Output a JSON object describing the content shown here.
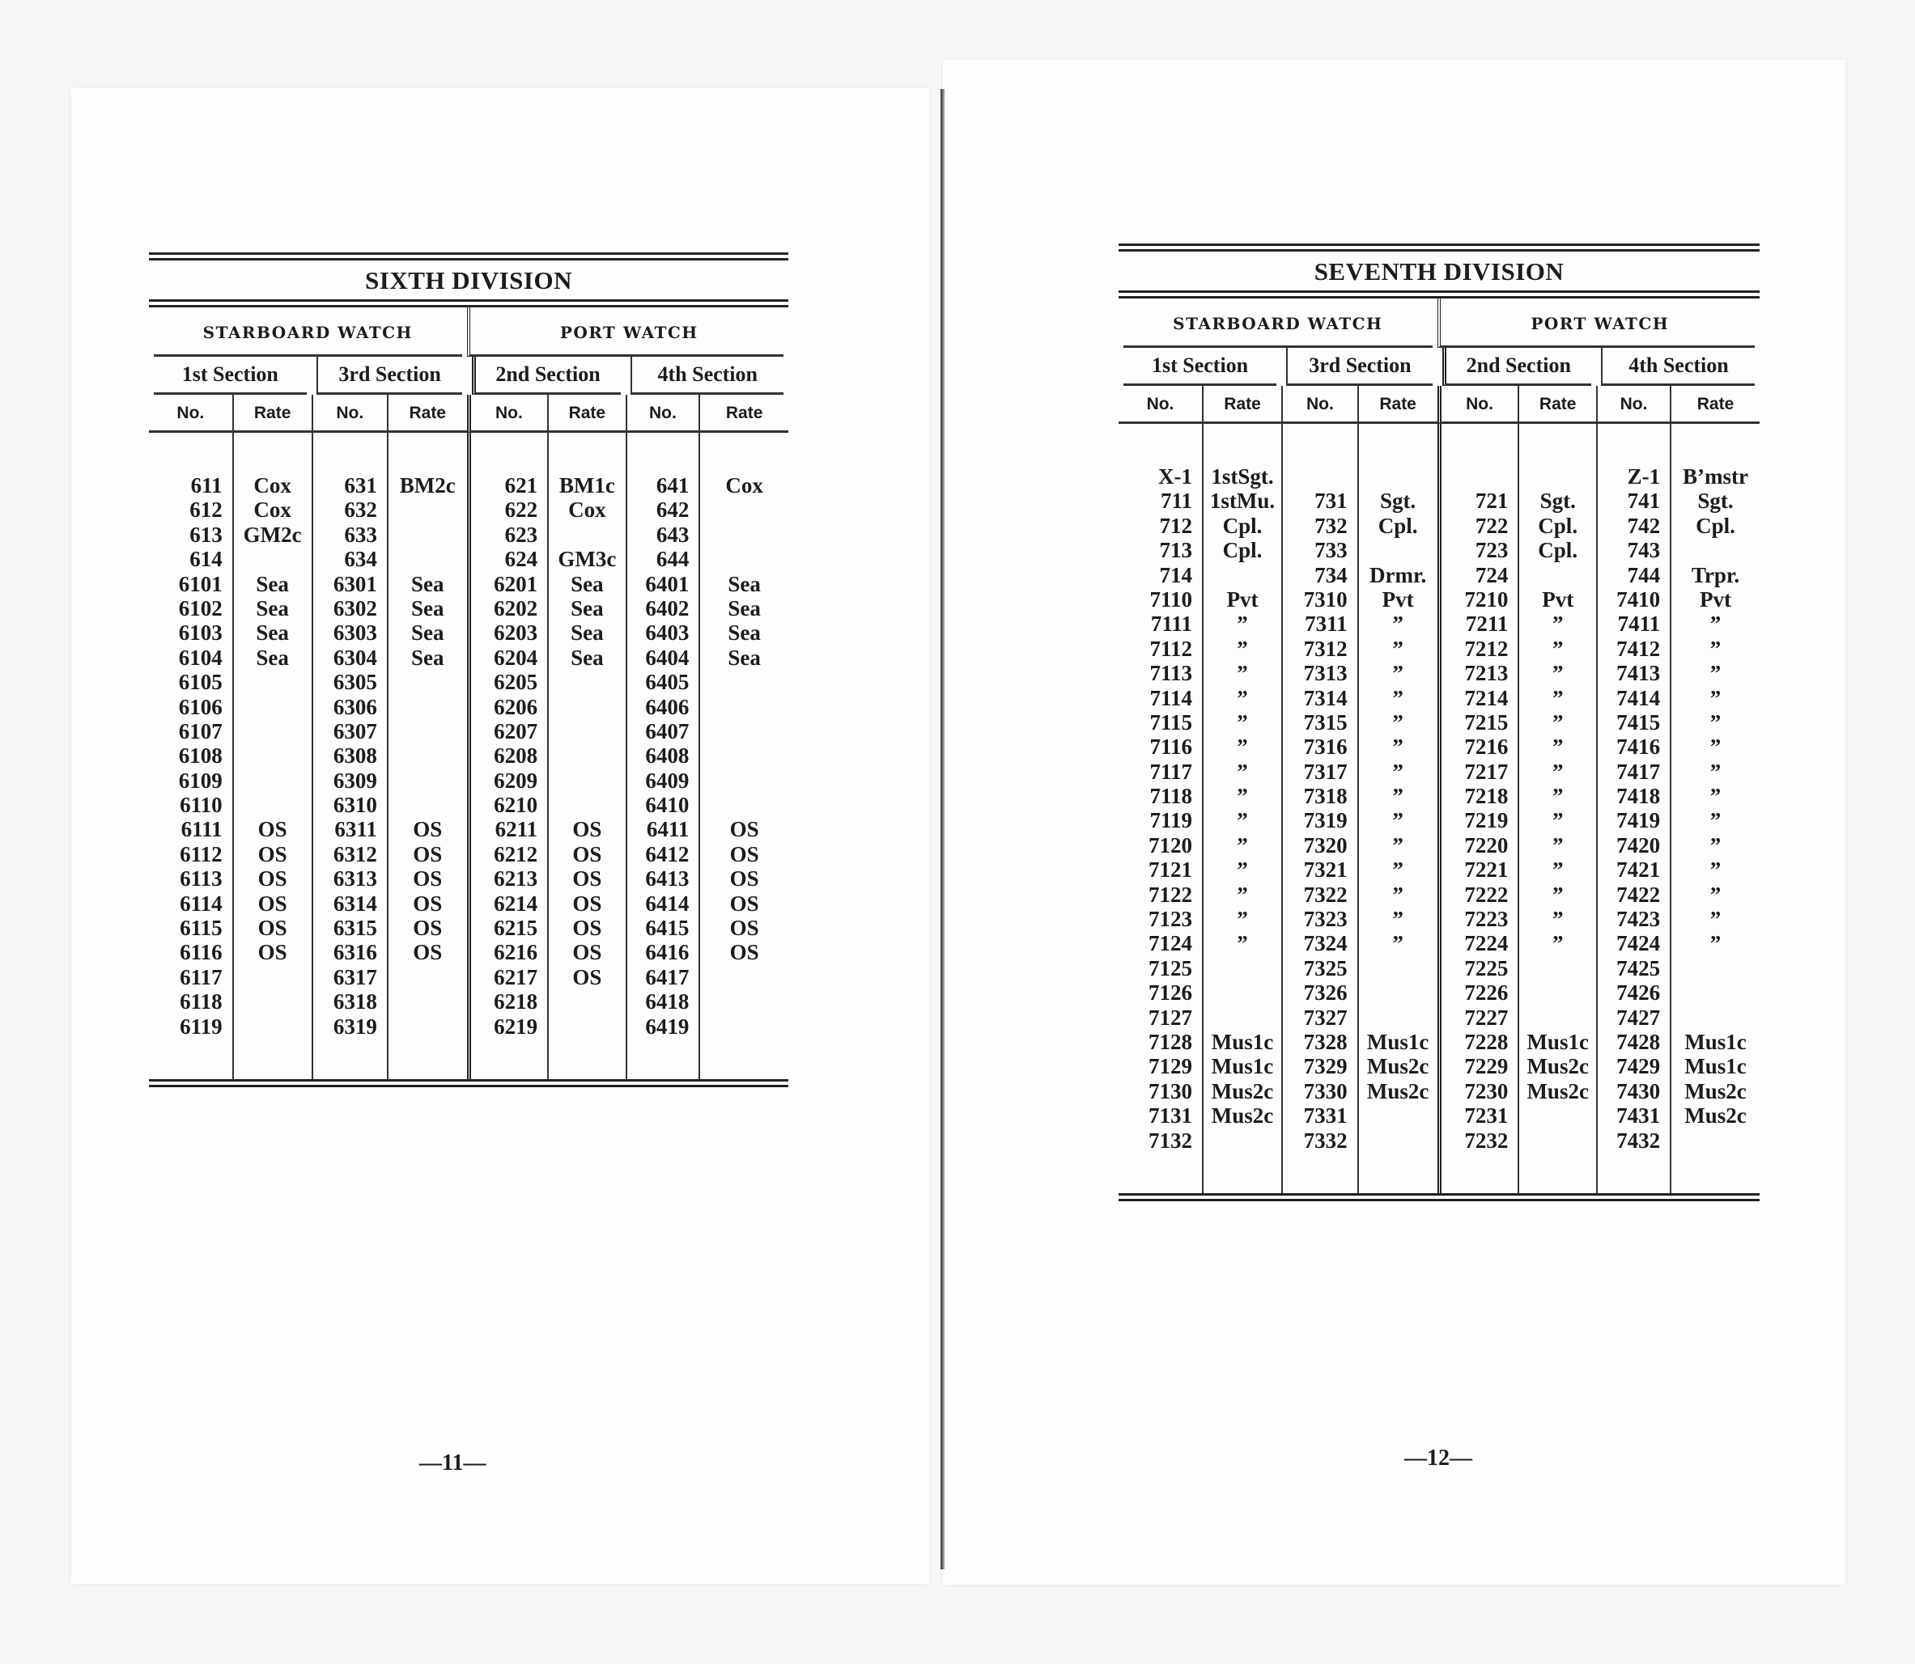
{
  "pages": [
    {
      "page_number": "—11—",
      "title": "SIXTH DIVISION",
      "watches": [
        {
          "label": "STARBOARD WATCH",
          "sections": [
            {
              "label": "1st Section",
              "no_label": "No.",
              "rate_label": "Rate",
              "rows": [
                [
                  "611",
                  "Cox"
                ],
                [
                  "612",
                  "Cox"
                ],
                [
                  "613",
                  "GM2c"
                ],
                [
                  "614",
                  ""
                ],
                [
                  "6101",
                  "Sea"
                ],
                [
                  "6102",
                  "Sea"
                ],
                [
                  "6103",
                  "Sea"
                ],
                [
                  "6104",
                  "Sea"
                ],
                [
                  "6105",
                  ""
                ],
                [
                  "6106",
                  ""
                ],
                [
                  "6107",
                  ""
                ],
                [
                  "6108",
                  ""
                ],
                [
                  "6109",
                  ""
                ],
                [
                  "6110",
                  ""
                ],
                [
                  "6111",
                  "OS"
                ],
                [
                  "6112",
                  "OS"
                ],
                [
                  "6113",
                  "OS"
                ],
                [
                  "6114",
                  "OS"
                ],
                [
                  "6115",
                  "OS"
                ],
                [
                  "6116",
                  "OS"
                ],
                [
                  "6117",
                  ""
                ],
                [
                  "6118",
                  ""
                ],
                [
                  "6119",
                  ""
                ]
              ]
            },
            {
              "label": "3rd Section",
              "no_label": "No.",
              "rate_label": "Rate",
              "rows": [
                [
                  "631",
                  "BM2c"
                ],
                [
                  "632",
                  ""
                ],
                [
                  "633",
                  ""
                ],
                [
                  "634",
                  ""
                ],
                [
                  "6301",
                  "Sea"
                ],
                [
                  "6302",
                  "Sea"
                ],
                [
                  "6303",
                  "Sea"
                ],
                [
                  "6304",
                  "Sea"
                ],
                [
                  "6305",
                  ""
                ],
                [
                  "6306",
                  ""
                ],
                [
                  "6307",
                  ""
                ],
                [
                  "6308",
                  ""
                ],
                [
                  "6309",
                  ""
                ],
                [
                  "6310",
                  ""
                ],
                [
                  "6311",
                  "OS"
                ],
                [
                  "6312",
                  "OS"
                ],
                [
                  "6313",
                  "OS"
                ],
                [
                  "6314",
                  "OS"
                ],
                [
                  "6315",
                  "OS"
                ],
                [
                  "6316",
                  "OS"
                ],
                [
                  "6317",
                  ""
                ],
                [
                  "6318",
                  ""
                ],
                [
                  "6319",
                  ""
                ]
              ]
            }
          ]
        },
        {
          "label": "PORT WATCH",
          "sections": [
            {
              "label": "2nd Section",
              "no_label": "No.",
              "rate_label": "Rate",
              "rows": [
                [
                  "621",
                  "BM1c"
                ],
                [
                  "622",
                  "Cox"
                ],
                [
                  "623",
                  ""
                ],
                [
                  "624",
                  "GM3c"
                ],
                [
                  "6201",
                  "Sea"
                ],
                [
                  "6202",
                  "Sea"
                ],
                [
                  "6203",
                  "Sea"
                ],
                [
                  "6204",
                  "Sea"
                ],
                [
                  "6205",
                  ""
                ],
                [
                  "6206",
                  ""
                ],
                [
                  "6207",
                  ""
                ],
                [
                  "6208",
                  ""
                ],
                [
                  "6209",
                  ""
                ],
                [
                  "6210",
                  ""
                ],
                [
                  "6211",
                  "OS"
                ],
                [
                  "6212",
                  "OS"
                ],
                [
                  "6213",
                  "OS"
                ],
                [
                  "6214",
                  "OS"
                ],
                [
                  "6215",
                  "OS"
                ],
                [
                  "6216",
                  "OS"
                ],
                [
                  "6217",
                  "OS"
                ],
                [
                  "6218",
                  ""
                ],
                [
                  "6219",
                  ""
                ]
              ]
            },
            {
              "label": "4th Section",
              "no_label": "No.",
              "rate_label": "Rate",
              "rows": [
                [
                  "641",
                  "Cox"
                ],
                [
                  "642",
                  ""
                ],
                [
                  "643",
                  ""
                ],
                [
                  "644",
                  ""
                ],
                [
                  "6401",
                  "Sea"
                ],
                [
                  "6402",
                  "Sea"
                ],
                [
                  "6403",
                  "Sea"
                ],
                [
                  "6404",
                  "Sea"
                ],
                [
                  "6405",
                  ""
                ],
                [
                  "6406",
                  ""
                ],
                [
                  "6407",
                  ""
                ],
                [
                  "6408",
                  ""
                ],
                [
                  "6409",
                  ""
                ],
                [
                  "6410",
                  ""
                ],
                [
                  "6411",
                  "OS"
                ],
                [
                  "6412",
                  "OS"
                ],
                [
                  "6413",
                  "OS"
                ],
                [
                  "6414",
                  "OS"
                ],
                [
                  "6415",
                  "OS"
                ],
                [
                  "6416",
                  "OS"
                ],
                [
                  "6417",
                  ""
                ],
                [
                  "6418",
                  ""
                ],
                [
                  "6419",
                  ""
                ]
              ]
            }
          ]
        }
      ]
    },
    {
      "page_number": "—12—",
      "title": "SEVENTH DIVISION",
      "watches": [
        {
          "label": "STARBOARD WATCH",
          "sections": [
            {
              "label": "1st Section",
              "no_label": "No.",
              "rate_label": "Rate",
              "rows": [
                [
                  "X-1",
                  "1stSgt."
                ],
                [
                  "711",
                  "1stMu."
                ],
                [
                  "712",
                  "Cpl."
                ],
                [
                  "713",
                  "Cpl."
                ],
                [
                  "714",
                  ""
                ],
                [
                  "7110",
                  "Pvt"
                ],
                [
                  "7111",
                  "”"
                ],
                [
                  "7112",
                  "”"
                ],
                [
                  "7113",
                  "”"
                ],
                [
                  "7114",
                  "”"
                ],
                [
                  "7115",
                  "”"
                ],
                [
                  "7116",
                  "”"
                ],
                [
                  "7117",
                  "”"
                ],
                [
                  "7118",
                  "”"
                ],
                [
                  "7119",
                  "”"
                ],
                [
                  "7120",
                  "”"
                ],
                [
                  "7121",
                  "”"
                ],
                [
                  "7122",
                  "”"
                ],
                [
                  "7123",
                  "”"
                ],
                [
                  "7124",
                  "”"
                ],
                [
                  "7125",
                  ""
                ],
                [
                  "7126",
                  ""
                ],
                [
                  "7127",
                  ""
                ],
                [
                  "7128",
                  "Mus1c"
                ],
                [
                  "7129",
                  "Mus1c"
                ],
                [
                  "7130",
                  "Mus2c"
                ],
                [
                  "7131",
                  "Mus2c"
                ],
                [
                  "7132",
                  ""
                ]
              ]
            },
            {
              "label": "3rd Section",
              "no_label": "No.",
              "rate_label": "Rate",
              "rows": [
                [
                  "",
                  ""
                ],
                [
                  "731",
                  "Sgt."
                ],
                [
                  "732",
                  "Cpl."
                ],
                [
                  "733",
                  ""
                ],
                [
                  "734",
                  "Drmr."
                ],
                [
                  "7310",
                  "Pvt"
                ],
                [
                  "7311",
                  "”"
                ],
                [
                  "7312",
                  "”"
                ],
                [
                  "7313",
                  "”"
                ],
                [
                  "7314",
                  "”"
                ],
                [
                  "7315",
                  "”"
                ],
                [
                  "7316",
                  "”"
                ],
                [
                  "7317",
                  "”"
                ],
                [
                  "7318",
                  "”"
                ],
                [
                  "7319",
                  "”"
                ],
                [
                  "7320",
                  "”"
                ],
                [
                  "7321",
                  "”"
                ],
                [
                  "7322",
                  "”"
                ],
                [
                  "7323",
                  "”"
                ],
                [
                  "7324",
                  "”"
                ],
                [
                  "7325",
                  ""
                ],
                [
                  "7326",
                  ""
                ],
                [
                  "7327",
                  ""
                ],
                [
                  "7328",
                  "Mus1c"
                ],
                [
                  "7329",
                  "Mus2c"
                ],
                [
                  "7330",
                  "Mus2c"
                ],
                [
                  "7331",
                  ""
                ],
                [
                  "7332",
                  ""
                ]
              ]
            }
          ]
        },
        {
          "label": "PORT WATCH",
          "sections": [
            {
              "label": "2nd Section",
              "no_label": "No.",
              "rate_label": "Rate",
              "rows": [
                [
                  "",
                  ""
                ],
                [
                  "721",
                  "Sgt."
                ],
                [
                  "722",
                  "Cpl."
                ],
                [
                  "723",
                  "Cpl."
                ],
                [
                  "724",
                  ""
                ],
                [
                  "7210",
                  "Pvt"
                ],
                [
                  "7211",
                  "”"
                ],
                [
                  "7212",
                  "”"
                ],
                [
                  "7213",
                  "”"
                ],
                [
                  "7214",
                  "”"
                ],
                [
                  "7215",
                  "”"
                ],
                [
                  "7216",
                  "”"
                ],
                [
                  "7217",
                  "”"
                ],
                [
                  "7218",
                  "”"
                ],
                [
                  "7219",
                  "”"
                ],
                [
                  "7220",
                  "”"
                ],
                [
                  "7221",
                  "”"
                ],
                [
                  "7222",
                  "”"
                ],
                [
                  "7223",
                  "”"
                ],
                [
                  "7224",
                  "”"
                ],
                [
                  "7225",
                  ""
                ],
                [
                  "7226",
                  ""
                ],
                [
                  "7227",
                  ""
                ],
                [
                  "7228",
                  "Mus1c"
                ],
                [
                  "7229",
                  "Mus2c"
                ],
                [
                  "7230",
                  "Mus2c"
                ],
                [
                  "7231",
                  ""
                ],
                [
                  "7232",
                  ""
                ]
              ]
            },
            {
              "label": "4th Section",
              "no_label": "No.",
              "rate_label": "Rate",
              "rows": [
                [
                  "Z-1",
                  "B’mstr"
                ],
                [
                  "741",
                  "Sgt."
                ],
                [
                  "742",
                  "Cpl."
                ],
                [
                  "743",
                  ""
                ],
                [
                  "744",
                  "Trpr."
                ],
                [
                  "7410",
                  "Pvt"
                ],
                [
                  "7411",
                  "”"
                ],
                [
                  "7412",
                  "”"
                ],
                [
                  "7413",
                  "”"
                ],
                [
                  "7414",
                  "”"
                ],
                [
                  "7415",
                  "”"
                ],
                [
                  "7416",
                  "”"
                ],
                [
                  "7417",
                  "”"
                ],
                [
                  "7418",
                  "”"
                ],
                [
                  "7419",
                  "”"
                ],
                [
                  "7420",
                  "”"
                ],
                [
                  "7421",
                  "”"
                ],
                [
                  "7422",
                  "”"
                ],
                [
                  "7423",
                  "”"
                ],
                [
                  "7424",
                  "”"
                ],
                [
                  "7425",
                  ""
                ],
                [
                  "7426",
                  ""
                ],
                [
                  "7427",
                  ""
                ],
                [
                  "7428",
                  "Mus1c"
                ],
                [
                  "7429",
                  "Mus1c"
                ],
                [
                  "7430",
                  "Mus2c"
                ],
                [
                  "7431",
                  "Mus2c"
                ],
                [
                  "7432",
                  ""
                ]
              ]
            }
          ]
        }
      ]
    }
  ]
}
